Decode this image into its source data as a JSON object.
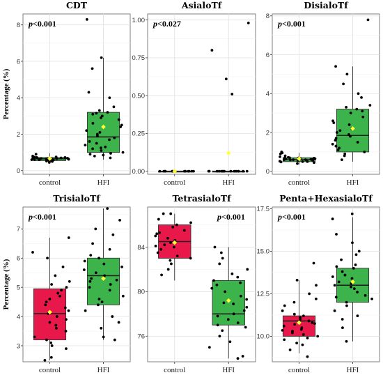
{
  "chart_data": [
    {
      "type": "box",
      "title": "CDT",
      "pvalue": "p<0.001",
      "pvalue_pos": "left",
      "ylabel": "Percentage (%)",
      "categories": [
        "control",
        "HFI"
      ],
      "ylim": [
        -0.2,
        8.6
      ],
      "yticks": [
        0,
        2,
        4,
        6,
        8
      ],
      "yticklabels": [
        "0",
        "2",
        "4",
        "6",
        "8"
      ],
      "boxes": [
        {
          "name": "control",
          "color": "#3cb44b",
          "q1": 0.55,
          "median": 0.65,
          "q3": 0.72,
          "whisker_low": 0.4,
          "whisker_high": 0.95,
          "mean": 0.66,
          "points": [
            0.5,
            0.55,
            0.6,
            0.62,
            0.65,
            0.68,
            0.7,
            0.72,
            0.58,
            0.63,
            0.67,
            0.7,
            0.75,
            0.8,
            0.55,
            0.6,
            0.65,
            0.9,
            0.5,
            0.45,
            0.72,
            0.6,
            0.68,
            0.62,
            0.74,
            0.58,
            0.66,
            0.7,
            0.52,
            0.64
          ]
        },
        {
          "name": "HFI",
          "color": "#3cb44b",
          "q1": 1.0,
          "median": 1.85,
          "q3": 3.2,
          "whisker_low": 0.6,
          "whisker_high": 6.2,
          "mean": 2.4,
          "points": [
            0.7,
            0.8,
            0.9,
            1.0,
            1.1,
            1.2,
            1.3,
            1.5,
            1.6,
            1.8,
            1.9,
            2.0,
            2.2,
            2.4,
            2.6,
            2.8,
            3.0,
            3.1,
            3.2,
            3.3,
            3.5,
            4.0,
            4.3,
            5.6,
            6.2,
            8.3,
            1.4,
            2.1,
            0.95,
            1.7,
            2.5,
            3.15,
            1.25,
            0.85,
            2.9
          ]
        }
      ]
    },
    {
      "type": "box",
      "title": "AsialoTf",
      "pvalue": "p<0.027",
      "pvalue_pos": "left",
      "categories": [
        "control",
        "HFI"
      ],
      "ylim": [
        -0.02,
        1.04
      ],
      "yticks": [
        0,
        0.25,
        0.5,
        0.75,
        1.0
      ],
      "yticklabels": [
        "0.00",
        "0.25",
        "0.50",
        "0.75",
        "1.00"
      ],
      "boxes": [
        {
          "name": "control",
          "color": "#3cb44b",
          "q1": 0,
          "median": 0,
          "q3": 0,
          "whisker_low": 0,
          "whisker_high": 0,
          "mean": 0,
          "points": [
            0,
            0,
            0,
            0,
            0,
            0,
            0,
            0,
            0,
            0,
            0,
            0
          ]
        },
        {
          "name": "HFI",
          "color": "#3cb44b",
          "q1": 0,
          "median": 0,
          "q3": 0,
          "whisker_low": 0,
          "whisker_high": 0,
          "mean": 0.12,
          "points": [
            0,
            0,
            0,
            0,
            0,
            0,
            0,
            0,
            0,
            0,
            0,
            0,
            0,
            0,
            0,
            0.51,
            0.61,
            0.8,
            0.98
          ]
        }
      ]
    },
    {
      "type": "box",
      "title": "DisialoTf",
      "pvalue": "p<0.001",
      "pvalue_pos": "left",
      "categories": [
        "control",
        "HFI"
      ],
      "ylim": [
        -0.15,
        8.1
      ],
      "yticks": [
        0,
        2,
        4,
        6,
        8
      ],
      "yticklabels": [
        "0",
        "2",
        "4",
        "6",
        "8"
      ],
      "boxes": [
        {
          "name": "control",
          "color": "#3cb44b",
          "q1": 0.5,
          "median": 0.6,
          "q3": 0.7,
          "whisker_low": 0.35,
          "whisker_high": 0.95,
          "mean": 0.65,
          "points": [
            0.4,
            0.45,
            0.5,
            0.55,
            0.6,
            0.62,
            0.65,
            0.7,
            0.75,
            0.8,
            0.5,
            0.55,
            0.6,
            0.68,
            0.72,
            0.58,
            0.63,
            0.9,
            0.95,
            0.52,
            0.66,
            0.61,
            0.57,
            0.7,
            0.64,
            0.48,
            0.59,
            0.69,
            1.0,
            0.6
          ]
        },
        {
          "name": "HFI",
          "color": "#3cb44b",
          "q1": 1.0,
          "median": 1.85,
          "q3": 3.2,
          "whisker_low": 0.5,
          "whisker_high": 5.4,
          "mean": 2.2,
          "points": [
            0.6,
            0.8,
            1.0,
            1.1,
            1.2,
            1.4,
            1.5,
            1.7,
            1.9,
            2.0,
            2.2,
            2.4,
            2.6,
            2.8,
            3.0,
            3.1,
            3.3,
            3.4,
            3.8,
            4.0,
            4.5,
            5.0,
            5.4,
            7.8,
            1.3,
            1.6,
            2.1,
            0.9,
            2.5,
            3.2,
            1.8
          ]
        }
      ]
    },
    {
      "type": "box",
      "title": "TrisialoTf",
      "pvalue": "p<0.001",
      "pvalue_pos": "left",
      "ylabel": "Percentage (%)",
      "categories": [
        "control",
        "HFI"
      ],
      "ylim": [
        2.45,
        7.75
      ],
      "yticks": [
        3,
        4,
        5,
        6,
        7
      ],
      "yticklabels": [
        "3",
        "4",
        "5",
        "6",
        "7"
      ],
      "boxes": [
        {
          "name": "control",
          "color": "#e8194a",
          "q1": 3.2,
          "median": 4.1,
          "q3": 4.95,
          "whisker_low": 2.5,
          "whisker_high": 6.7,
          "mean": 4.15,
          "points": [
            2.5,
            2.6,
            2.9,
            3.1,
            3.2,
            3.3,
            3.5,
            3.6,
            3.8,
            3.9,
            4.0,
            4.1,
            4.2,
            4.3,
            4.5,
            4.6,
            4.8,
            4.9,
            5.0,
            5.1,
            5.2,
            5.4,
            5.7,
            6.0,
            6.2,
            6.7,
            3.0,
            3.7,
            4.4,
            4.7
          ]
        },
        {
          "name": "HFI",
          "color": "#3cb44b",
          "q1": 4.4,
          "median": 5.4,
          "q3": 6.0,
          "whisker_low": 3.2,
          "whisker_high": 7.7,
          "mean": 5.3,
          "points": [
            3.2,
            3.3,
            3.6,
            3.8,
            4.0,
            4.2,
            4.4,
            4.5,
            4.7,
            4.9,
            5.0,
            5.1,
            5.2,
            5.3,
            5.4,
            5.5,
            5.6,
            5.7,
            5.8,
            5.9,
            6.0,
            6.1,
            6.3,
            6.5,
            6.8,
            7.0,
            7.3,
            7.7,
            4.6,
            5.25
          ]
        }
      ]
    },
    {
      "type": "box",
      "title": "TetrasialoTf",
      "pvalue": "p<0.001",
      "pvalue_pos": "right",
      "categories": [
        "control",
        "HFI"
      ],
      "ylim": [
        73.7,
        87.6
      ],
      "yticks": [
        76,
        80,
        84
      ],
      "yticklabels": [
        "76",
        "80",
        "84"
      ],
      "boxes": [
        {
          "name": "control",
          "color": "#e8194a",
          "q1": 83.0,
          "median": 84.5,
          "q3": 86.0,
          "whisker_low": 81.0,
          "whisker_high": 87.0,
          "mean": 84.4,
          "points": [
            81.5,
            82.0,
            82.5,
            83.0,
            83.2,
            83.5,
            83.8,
            84.0,
            84.2,
            84.4,
            84.6,
            84.8,
            85.0,
            85.2,
            85.5,
            85.8,
            86.0,
            86.2,
            86.5,
            87.0,
            87.0,
            82.8,
            84.1,
            85.3
          ]
        },
        {
          "name": "HFI",
          "color": "#3cb44b",
          "q1": 77.0,
          "median": 78.0,
          "q3": 81.0,
          "whisker_low": 74.0,
          "whisker_high": 84.0,
          "mean": 79.2,
          "points": [
            74.0,
            74.2,
            75.0,
            75.5,
            76.0,
            76.5,
            77.0,
            77.2,
            77.5,
            77.8,
            78.0,
            78.3,
            78.6,
            79.0,
            79.3,
            79.6,
            80.0,
            80.3,
            80.6,
            81.0,
            81.3,
            81.6,
            82.0,
            82.5,
            83.0,
            83.5,
            84.0,
            76.8,
            78.9,
            80.8
          ]
        }
      ]
    },
    {
      "type": "box",
      "title": "Penta+HexasialoTf",
      "pvalue": "p<0.001",
      "pvalue_pos": "left",
      "categories": [
        "control",
        "HFI"
      ],
      "ylim": [
        8.5,
        17.6
      ],
      "yticks": [
        10,
        12.5,
        15,
        17.5
      ],
      "yticklabels": [
        "10.0",
        "12.5",
        "15.0",
        "17.5"
      ],
      "boxes": [
        {
          "name": "control",
          "color": "#e8194a",
          "q1": 10.0,
          "median": 10.9,
          "q3": 11.2,
          "whisker_low": 9.0,
          "whisker_high": 13.3,
          "mean": 10.8,
          "points": [
            8.8,
            9.2,
            9.5,
            9.8,
            9.9,
            10.0,
            10.1,
            10.2,
            10.3,
            10.4,
            10.5,
            10.6,
            10.7,
            10.8,
            10.9,
            11.0,
            11.1,
            11.2,
            11.3,
            11.5,
            11.8,
            12.0,
            12.2,
            12.5,
            13.0,
            13.3,
            14.3,
            9.6,
            10.35,
            10.75
          ]
        },
        {
          "name": "HFI",
          "color": "#3cb44b",
          "q1": 12.0,
          "median": 13.0,
          "q3": 14.0,
          "whisker_low": 9.7,
          "whisker_high": 17.0,
          "mean": 13.2,
          "points": [
            9.7,
            10.5,
            11.0,
            11.5,
            11.8,
            12.0,
            12.2,
            12.4,
            12.6,
            12.8,
            13.0,
            13.1,
            13.2,
            13.4,
            13.6,
            13.8,
            14.0,
            14.2,
            14.5,
            14.8,
            15.0,
            15.5,
            16.0,
            16.9,
            17.2,
            12.9,
            13.5,
            11.2,
            14.1,
            12.3
          ]
        }
      ]
    }
  ]
}
